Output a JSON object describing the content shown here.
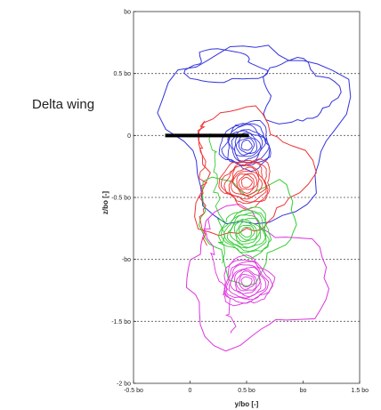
{
  "chart_data": {
    "type": "contour",
    "xlabel": "y/bo [-]",
    "ylabel": "z/bo [-]",
    "xlim": [
      -0.5,
      1.5
    ],
    "ylim": [
      -2,
      1
    ],
    "x_ticks": [
      {
        "value": -0.5,
        "label": "-0.5 bo"
      },
      {
        "value": 0,
        "label": "0"
      },
      {
        "value": 0.5,
        "label": "0.5 bo"
      },
      {
        "value": 1,
        "label": "bo"
      },
      {
        "value": 1.5,
        "label": "1.5 bo"
      }
    ],
    "y_ticks": [
      {
        "value": 1,
        "label": "bo"
      },
      {
        "value": 0.5,
        "label": "0.5 bo"
      },
      {
        "value": 0,
        "label": "0"
      },
      {
        "value": -0.5,
        "label": "-0.5 bo"
      },
      {
        "value": -1,
        "label": "-bo"
      },
      {
        "value": -1.5,
        "label": "-1.5 bo"
      },
      {
        "value": -2,
        "label": "-2 bo"
      }
    ],
    "grid": "horizontal-dashed",
    "vortices": [
      {
        "color": "#3333dd",
        "center": [
          0.5,
          -0.08
        ]
      },
      {
        "color": "#ee3333",
        "center": [
          0.5,
          -0.38
        ]
      },
      {
        "color": "#33cc33",
        "center": [
          0.5,
          -0.78
        ]
      },
      {
        "color": "#dd33dd",
        "center": [
          0.5,
          -1.18
        ]
      }
    ],
    "annotation": {
      "label": "Delta wing",
      "x_range": [
        -0.22,
        0.52
      ],
      "y": 0.0
    }
  }
}
